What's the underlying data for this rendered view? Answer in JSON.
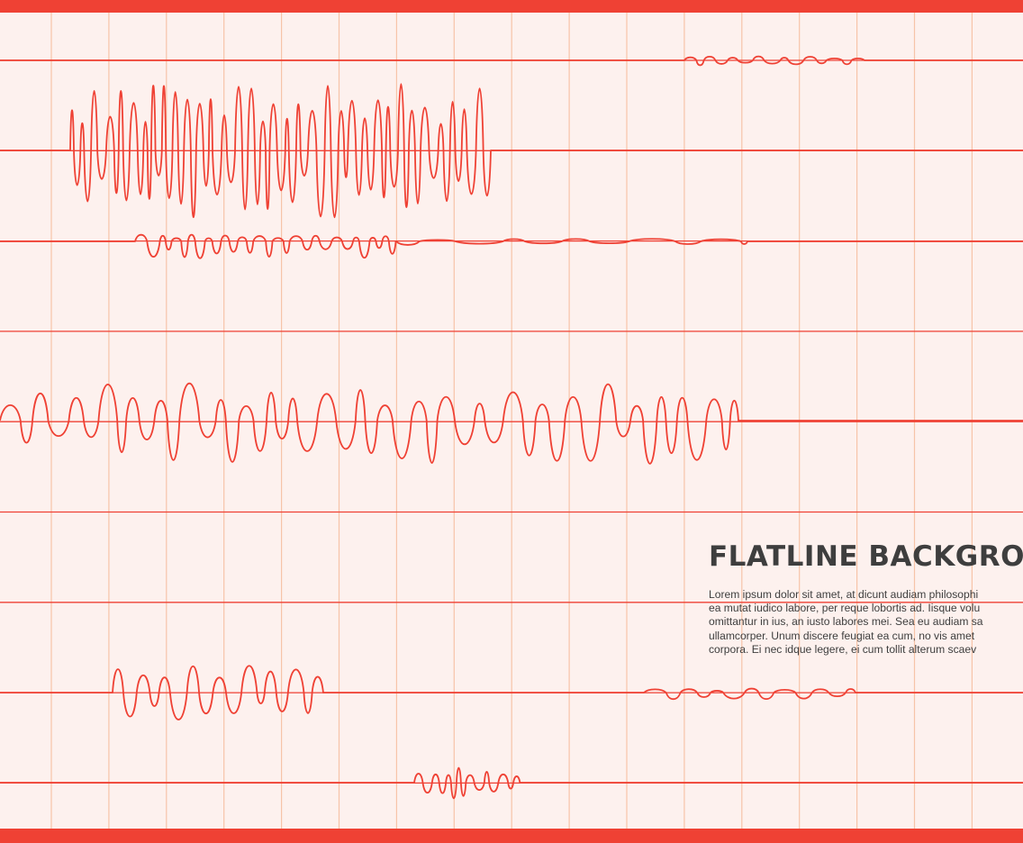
{
  "headline": "FLATLINE BACKGROU",
  "body_lines": [
    "Lorem ipsum dolor sit amet, at dicunt audiam philosophi",
    "ea mutat iudico labore, per reque lobortis ad. Iisque volu",
    "omittantur in ius, an iusto labores mei. Sea eu audiam sa",
    "ullamcorper. Unum discere feugiat ea cum, no vis amet",
    "corpora. Ei nec idque legere, ei cum tollit alterum scaev"
  ],
  "colors": {
    "background": "#fdf1ee",
    "accent_red": "#ef4134",
    "grid_vertical": "#f7c4a8",
    "text": "#3e3e3e"
  }
}
